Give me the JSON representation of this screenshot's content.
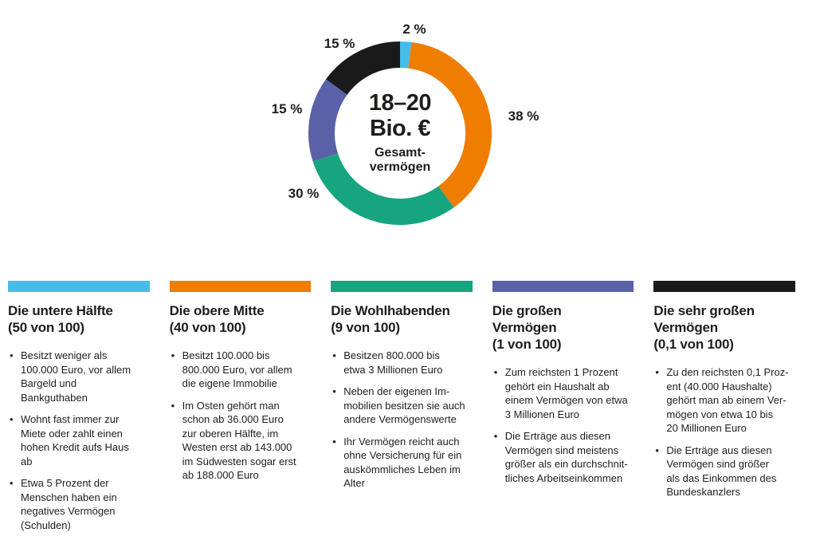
{
  "chart_data": {
    "type": "pie",
    "subtype": "donut",
    "direction": "clockwise",
    "start_angle_deg_from_top": 0,
    "center_value": "18–20\nBio. €",
    "center_label": "Gesamt-\nvermögen",
    "segments": [
      {
        "name": "Die untere Hälfte (50 von 100)",
        "value": 2,
        "label": "2 %",
        "color": "#45BDE8"
      },
      {
        "name": "Die obere Mitte (40 von 100)",
        "value": 38,
        "label": "38 %",
        "color": "#EE7D00"
      },
      {
        "name": "Die Wohlhabenden (9 von 100)",
        "value": 30,
        "label": "30 %",
        "color": "#16A57F"
      },
      {
        "name": "Die großen Vermögen (1 von 100)",
        "value": 15,
        "label": "15 %",
        "color": "#5A61A9"
      },
      {
        "name": "Die sehr großen Vermögen (0,1 von 100)",
        "value": 15,
        "label": "15 %",
        "color": "#1A1A1A"
      }
    ]
  },
  "groups": [
    {
      "color": "#45BDE8",
      "title": "Die untere Hälfte\n(50 von 100)",
      "bullets": [
        "Besitzt weniger als\n100.000 Euro, vor allem\nBargeld und\nBankguthaben",
        "Wohnt fast immer zur\nMiete oder zahlt einen\nhohen Kredit aufs Haus\nab",
        "Etwa 5 Prozent der\nMenschen haben ein\nnegatives Vermögen\n(Schulden)"
      ]
    },
    {
      "color": "#EE7D00",
      "title": "Die obere Mitte\n(40 von 100)",
      "bullets": [
        "Besitzt 100.000 bis\n800.000 Euro, vor allem\ndie eigene Immobilie",
        "Im Osten gehört man\nschon ab 36.000 Euro\nzur oberen Hälfte, im\nWesten erst ab 143.000\nim Südwesten sogar erst\nab 188.000 Euro"
      ]
    },
    {
      "color": "#16A57F",
      "title": "Die Wohlhabenden\n(9 von 100)",
      "bullets": [
        "Besitzen 800.000 bis\netwa 3 Millionen Euro",
        "Neben der eigenen Im-\nmobilien besitzen sie auch\nandere Vermögenswerte",
        "Ihr Vermögen reicht auch\nohne Versicherung für ein\nauskömmliches Leben im\nAlter"
      ]
    },
    {
      "color": "#5A61A9",
      "title": "Die großen\nVermögen\n(1 von 100)",
      "bullets": [
        "Zum reichsten 1 Prozent\ngehört ein Haushalt ab\neinem Vermögen von etwa\n3 Millionen Euro",
        "Die Erträge aus diesen\nVermögen sind meistens\ngrößer als ein durchschnit-\ntliches Arbeitseinkommen"
      ]
    },
    {
      "color": "#1A1A1A",
      "title": "Die sehr großen\nVermögen\n(0,1 von 100)",
      "bullets": [
        "Zu den reichsten 0,1 Proz-\nent (40.000 Haushalte)\ngehört man ab einem Ver-\nmögen von etwa 10 bis\n20 Millionen Euro",
        "Die Erträge aus diesen\nVermögen sind größer\nals das Einkommen des\nBundeskanzlers"
      ]
    }
  ]
}
